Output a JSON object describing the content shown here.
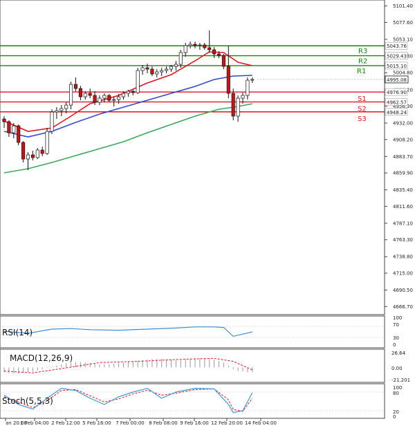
{
  "chart_data": {
    "type": "candlestick",
    "price_axis": {
      "ylim": [
        4655,
        5110
      ],
      "ticks": [
        "5101.40",
        "5077.60",
        "5053.10",
        "5028.80",
        "5004.80",
        "4980.20",
        "4956.30",
        "4932.00",
        "4908.20",
        "4883.70",
        "4859.90",
        "4835.40",
        "4811.60",
        "4787.10",
        "4763.30",
        "4738.80",
        "4715.00",
        "4690.50",
        "4666.70"
      ]
    },
    "x_labels": [
      "an 20:00",
      "1 Feb 04:00",
      "2 Feb 12:00",
      "5 Feb 16:00",
      "7 Feb 00:00",
      "8 Feb 08:00",
      "9 Feb 16:00",
      "12 Feb 20:00",
      "14 Feb 04:00"
    ],
    "levels": [
      {
        "name": "R3",
        "value": 5043.76,
        "color": "#0a8a0a"
      },
      {
        "name": "R2",
        "value": 5029.43,
        "color": "#0a8a0a"
      },
      {
        "name": "R1",
        "value": 5015.1,
        "color": "#0a8a0a"
      },
      {
        "name": "S1",
        "value": 4976.9,
        "color": "#e0141e"
      },
      {
        "name": "S2",
        "value": 4962.57,
        "color": "#e0141e"
      },
      {
        "name": "S3",
        "value": 4948.24,
        "color": "#e0141e"
      }
    ],
    "last_price": {
      "label": "4995.08",
      "value": 4995.08
    },
    "candles": [
      [
        4938,
        4942,
        4925,
        4934
      ],
      [
        4934,
        4936,
        4912,
        4918
      ],
      [
        4918,
        4932,
        4910,
        4928
      ],
      [
        4928,
        4930,
        4900,
        4904
      ],
      [
        4904,
        4906,
        4875,
        4880
      ],
      [
        4880,
        4890,
        4864,
        4886
      ],
      [
        4886,
        4892,
        4878,
        4882
      ],
      [
        4882,
        4896,
        4880,
        4893
      ],
      [
        4893,
        4898,
        4884,
        4888
      ],
      [
        4888,
        4925,
        4886,
        4920
      ],
      [
        4920,
        4952,
        4916,
        4948
      ],
      [
        4948,
        4955,
        4938,
        4950
      ],
      [
        4950,
        4958,
        4942,
        4953
      ],
      [
        4953,
        4962,
        4946,
        4958
      ],
      [
        4958,
        4992,
        4952,
        4988
      ],
      [
        4988,
        4998,
        4978,
        4982
      ],
      [
        4982,
        4986,
        4965,
        4970
      ],
      [
        4970,
        4978,
        4966,
        4975
      ],
      [
        4975,
        4982,
        4968,
        4972
      ],
      [
        4972,
        4978,
        4958,
        4962
      ],
      [
        4962,
        4972,
        4958,
        4968
      ],
      [
        4968,
        4975,
        4962,
        4972
      ],
      [
        4972,
        4974,
        4962,
        4965
      ],
      [
        4965,
        4970,
        4956,
        4966
      ],
      [
        4966,
        4974,
        4960,
        4970
      ],
      [
        4970,
        4978,
        4966,
        4975
      ],
      [
        4975,
        4980,
        4970,
        4978
      ],
      [
        4978,
        4980,
        4972,
        4976
      ],
      [
        4976,
        5012,
        4974,
        5008
      ],
      [
        5008,
        5016,
        5002,
        5012
      ],
      [
        5012,
        5018,
        5004,
        5010
      ],
      [
        5010,
        5014,
        5000,
        5003
      ],
      [
        5003,
        5010,
        4998,
        5006
      ],
      [
        5006,
        5012,
        5000,
        5008
      ],
      [
        5008,
        5014,
        5004,
        5010
      ],
      [
        5010,
        5016,
        5006,
        5014
      ],
      [
        5014,
        5022,
        5008,
        5017
      ],
      [
        5017,
        5038,
        5012,
        5034
      ],
      [
        5034,
        5048,
        5028,
        5044
      ],
      [
        5044,
        5050,
        5040,
        5046
      ],
      [
        5046,
        5050,
        5040,
        5044
      ],
      [
        5044,
        5048,
        5038,
        5045
      ],
      [
        5045,
        5048,
        5038,
        5041
      ],
      [
        5041,
        5066,
        5034,
        5038
      ],
      [
        5038,
        5042,
        5026,
        5032
      ],
      [
        5032,
        5036,
        5026,
        5030
      ],
      [
        5030,
        5032,
        5010,
        5014
      ],
      [
        5014,
        5044,
        4968,
        4975
      ],
      [
        4975,
        4982,
        4936,
        4942
      ],
      [
        4942,
        4972,
        4934,
        4968
      ],
      [
        4968,
        4976,
        4960,
        4972
      ],
      [
        4972,
        4998,
        4966,
        4994
      ],
      [
        4994,
        4998,
        4990,
        4995
      ]
    ],
    "ma_fast": [
      [
        0,
        4935
      ],
      [
        5,
        4920
      ],
      [
        10,
        4925
      ],
      [
        14,
        4942
      ],
      [
        18,
        4960
      ],
      [
        24,
        4972
      ],
      [
        30,
        4990
      ],
      [
        35,
        5002
      ],
      [
        40,
        5022
      ],
      [
        43,
        5035
      ],
      [
        46,
        5034
      ],
      [
        49,
        5020
      ],
      [
        52,
        5015
      ]
    ],
    "ma_mid": [
      [
        0,
        4920
      ],
      [
        5,
        4912
      ],
      [
        10,
        4920
      ],
      [
        15,
        4933
      ],
      [
        20,
        4945
      ],
      [
        25,
        4955
      ],
      [
        30,
        4965
      ],
      [
        35,
        4975
      ],
      [
        40,
        4985
      ],
      [
        44,
        4995
      ],
      [
        48,
        5000
      ],
      [
        52,
        5001
      ]
    ],
    "ma_slow": [
      [
        0,
        4860
      ],
      [
        5,
        4866
      ],
      [
        10,
        4875
      ],
      [
        15,
        4885
      ],
      [
        20,
        4895
      ],
      [
        25,
        4905
      ],
      [
        30,
        4918
      ],
      [
        35,
        4930
      ],
      [
        40,
        4942
      ],
      [
        45,
        4952
      ],
      [
        49,
        4956
      ],
      [
        52,
        4960
      ]
    ],
    "rsi": {
      "label": "RSI(14)",
      "ticks": [
        "100",
        "70",
        "30",
        "0"
      ],
      "values": [
        [
          0,
          52
        ],
        [
          5,
          45
        ],
        [
          10,
          60
        ],
        [
          14,
          62
        ],
        [
          18,
          58
        ],
        [
          24,
          56
        ],
        [
          30,
          60
        ],
        [
          36,
          64
        ],
        [
          40,
          68
        ],
        [
          44,
          68
        ],
        [
          46,
          66
        ],
        [
          48,
          34
        ],
        [
          50,
          42
        ],
        [
          52,
          50
        ]
      ]
    },
    "macd": {
      "label": "MACD(12,26,9)",
      "ticks": [
        "26.64",
        "0.00",
        "-21.201"
      ],
      "hist": [
        -8,
        -9,
        -10,
        -10,
        -9,
        -8,
        -7,
        -5,
        -3,
        -1,
        1,
        3,
        5,
        7,
        8,
        9,
        9,
        8,
        7,
        6,
        5,
        5,
        5,
        6,
        7,
        8,
        9,
        10,
        11,
        12,
        13,
        14,
        14,
        14,
        13,
        13,
        12,
        12,
        13,
        14,
        15,
        15,
        15,
        14,
        13,
        11,
        8,
        3,
        -3,
        -6,
        -7,
        -8,
        -8
      ],
      "signal": [
        [
          0,
          -6
        ],
        [
          6,
          -9
        ],
        [
          12,
          -2
        ],
        [
          20,
          8
        ],
        [
          28,
          10
        ],
        [
          36,
          13
        ],
        [
          44,
          15
        ],
        [
          48,
          10
        ],
        [
          52,
          -4
        ]
      ]
    },
    "stoch": {
      "label": "Stoch(5,5,3)",
      "ticks": [
        "100",
        "80",
        "20",
        "0"
      ],
      "k": [
        [
          0,
          70
        ],
        [
          3,
          40
        ],
        [
          6,
          25
        ],
        [
          9,
          60
        ],
        [
          12,
          92
        ],
        [
          15,
          85
        ],
        [
          18,
          60
        ],
        [
          21,
          40
        ],
        [
          24,
          65
        ],
        [
          27,
          80
        ],
        [
          30,
          92
        ],
        [
          33,
          60
        ],
        [
          36,
          80
        ],
        [
          40,
          92
        ],
        [
          44,
          90
        ],
        [
          47,
          40
        ],
        [
          48,
          14
        ],
        [
          50,
          20
        ],
        [
          52,
          78
        ]
      ],
      "d": [
        [
          0,
          65
        ],
        [
          3,
          48
        ],
        [
          6,
          30
        ],
        [
          9,
          52
        ],
        [
          12,
          85
        ],
        [
          15,
          88
        ],
        [
          18,
          68
        ],
        [
          21,
          48
        ],
        [
          24,
          58
        ],
        [
          27,
          74
        ],
        [
          30,
          86
        ],
        [
          33,
          70
        ],
        [
          36,
          76
        ],
        [
          40,
          88
        ],
        [
          44,
          90
        ],
        [
          47,
          55
        ],
        [
          48,
          24
        ],
        [
          50,
          18
        ],
        [
          52,
          60
        ]
      ]
    }
  }
}
